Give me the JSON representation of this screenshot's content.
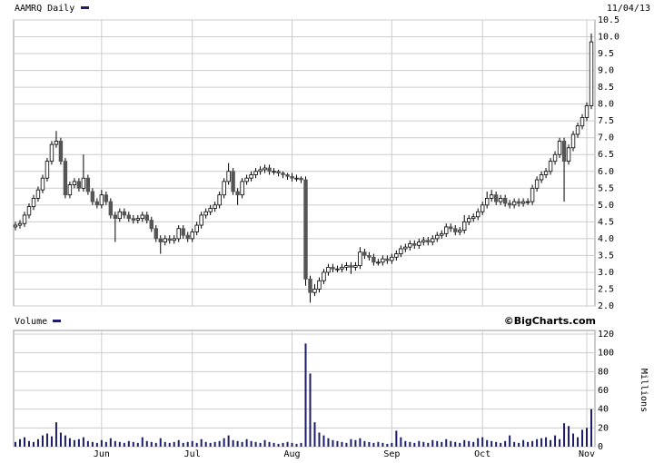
{
  "chart_data": [
    {
      "type": "candlestick",
      "title": "AAMRQ Daily",
      "date": "11/04/13",
      "open": [
        4.35,
        4.4,
        4.45,
        4.7,
        4.95,
        5.2,
        5.45,
        5.8,
        6.3,
        6.8,
        6.9,
        6.3,
        5.3,
        5.6,
        5.7,
        5.5,
        5.8,
        5.4,
        5.1,
        5.0,
        5.3,
        5.1,
        4.7,
        4.6,
        4.8,
        4.7,
        4.6,
        4.55,
        4.6,
        4.7,
        4.55,
        4.3,
        4.0,
        3.9,
        4.0,
        3.95,
        4.0,
        4.3,
        4.1,
        4.0,
        4.2,
        4.4,
        4.7,
        4.8,
        4.9,
        5.0,
        5.3,
        5.7,
        6.0,
        5.4,
        5.3,
        5.7,
        5.8,
        5.9,
        6.0,
        6.05,
        6.1,
        6.0,
        6.0,
        5.95,
        5.9,
        5.85,
        5.8,
        5.8,
        5.75,
        2.8,
        2.4,
        2.5,
        2.75,
        3.0,
        3.15,
        3.1,
        3.1,
        3.15,
        3.2,
        3.15,
        3.2,
        3.6,
        3.5,
        3.45,
        3.3,
        3.3,
        3.4,
        3.35,
        3.45,
        3.55,
        3.7,
        3.75,
        3.85,
        3.8,
        3.9,
        3.95,
        3.9,
        4.0,
        4.1,
        4.15,
        4.35,
        4.3,
        4.2,
        4.25,
        4.5,
        4.6,
        4.65,
        4.8,
        5.0,
        5.2,
        5.3,
        5.1,
        5.2,
        5.05,
        5.0,
        5.1,
        5.05,
        5.1,
        5.1,
        5.5,
        5.75,
        5.9,
        6.0,
        6.3,
        6.5,
        6.9,
        6.3,
        6.7,
        7.1,
        7.35,
        7.6,
        7.95
      ],
      "high": [
        4.5,
        4.55,
        4.8,
        5.05,
        5.3,
        5.55,
        5.9,
        6.4,
        6.9,
        7.2,
        7.0,
        6.4,
        5.7,
        5.8,
        5.8,
        6.5,
        5.9,
        5.5,
        5.2,
        5.45,
        5.4,
        5.2,
        4.8,
        4.9,
        4.9,
        4.8,
        4.7,
        4.7,
        4.8,
        4.8,
        4.65,
        4.4,
        4.1,
        4.1,
        4.1,
        4.1,
        4.4,
        4.4,
        4.2,
        4.3,
        4.5,
        4.8,
        4.9,
        5.0,
        5.1,
        5.4,
        5.8,
        6.25,
        6.1,
        5.5,
        5.8,
        5.9,
        6.0,
        6.1,
        6.15,
        6.2,
        6.2,
        6.1,
        6.05,
        6.0,
        5.95,
        5.95,
        5.9,
        5.85,
        5.85,
        2.9,
        2.65,
        2.85,
        3.1,
        3.25,
        3.25,
        3.2,
        3.25,
        3.3,
        3.3,
        3.3,
        3.75,
        3.7,
        3.6,
        3.55,
        3.4,
        3.5,
        3.5,
        3.55,
        3.65,
        3.8,
        3.85,
        3.95,
        3.95,
        4.0,
        4.05,
        4.05,
        4.1,
        4.2,
        4.25,
        4.45,
        4.45,
        4.4,
        4.35,
        4.7,
        4.7,
        4.75,
        4.9,
        5.1,
        5.4,
        5.45,
        5.4,
        5.3,
        5.3,
        5.15,
        5.2,
        5.2,
        5.2,
        5.2,
        5.6,
        5.85,
        6.0,
        6.1,
        6.4,
        6.6,
        7.0,
        7.0,
        6.8,
        7.2,
        7.45,
        7.7,
        8.05,
        10.1
      ],
      "low": [
        4.25,
        4.3,
        4.35,
        4.6,
        4.85,
        5.1,
        5.35,
        5.7,
        6.2,
        6.7,
        6.2,
        5.2,
        5.2,
        5.5,
        5.4,
        5.4,
        5.3,
        5.0,
        4.9,
        4.9,
        5.0,
        4.6,
        3.9,
        4.5,
        4.6,
        4.5,
        4.45,
        4.45,
        4.5,
        4.45,
        4.2,
        3.9,
        3.55,
        3.8,
        3.85,
        3.85,
        3.9,
        4.0,
        3.9,
        3.9,
        4.1,
        4.3,
        4.6,
        4.7,
        4.8,
        4.9,
        5.2,
        5.6,
        5.3,
        5.0,
        5.2,
        5.6,
        5.7,
        5.8,
        5.9,
        5.95,
        5.9,
        5.9,
        5.85,
        5.8,
        5.75,
        5.7,
        5.7,
        5.65,
        2.6,
        2.1,
        2.3,
        2.4,
        2.65,
        2.9,
        3.0,
        3.0,
        3.0,
        3.05,
        2.95,
        3.05,
        3.1,
        3.4,
        3.35,
        3.2,
        3.2,
        3.2,
        3.25,
        3.25,
        3.35,
        3.45,
        3.6,
        3.65,
        3.7,
        3.7,
        3.8,
        3.8,
        3.8,
        3.9,
        4.0,
        4.05,
        4.2,
        4.1,
        4.1,
        4.15,
        4.4,
        4.5,
        4.55,
        4.7,
        4.9,
        5.1,
        5.0,
        5.0,
        4.95,
        4.9,
        4.9,
        4.95,
        4.95,
        5.0,
        5.0,
        5.4,
        5.65,
        5.8,
        5.9,
        6.2,
        6.4,
        5.1,
        6.2,
        6.6,
        7.0,
        7.25,
        7.5,
        7.85
      ],
      "close": [
        4.4,
        4.45,
        4.7,
        4.95,
        5.2,
        5.45,
        5.8,
        6.3,
        6.8,
        6.9,
        6.3,
        5.3,
        5.6,
        5.7,
        5.5,
        5.8,
        5.4,
        5.1,
        5.0,
        5.3,
        5.1,
        4.7,
        4.6,
        4.8,
        4.7,
        4.6,
        4.55,
        4.6,
        4.7,
        4.55,
        4.3,
        4.0,
        3.9,
        4.0,
        3.95,
        4.0,
        4.3,
        4.1,
        4.0,
        4.2,
        4.4,
        4.7,
        4.8,
        4.9,
        5.0,
        5.3,
        5.7,
        6.0,
        5.4,
        5.3,
        5.7,
        5.8,
        5.9,
        6.0,
        6.05,
        6.1,
        6.0,
        6.0,
        5.95,
        5.9,
        5.85,
        5.8,
        5.8,
        5.75,
        2.8,
        2.4,
        2.5,
        2.75,
        3.0,
        3.15,
        3.1,
        3.1,
        3.15,
        3.2,
        3.15,
        3.2,
        3.6,
        3.5,
        3.45,
        3.3,
        3.3,
        3.4,
        3.35,
        3.45,
        3.55,
        3.7,
        3.75,
        3.85,
        3.8,
        3.9,
        3.95,
        3.9,
        4.0,
        4.1,
        4.15,
        4.35,
        4.3,
        4.2,
        4.25,
        4.5,
        4.6,
        4.65,
        4.8,
        5.0,
        5.2,
        5.3,
        5.1,
        5.2,
        5.05,
        5.0,
        5.1,
        5.05,
        5.1,
        5.1,
        5.5,
        5.75,
        5.9,
        6.0,
        6.3,
        6.5,
        6.9,
        6.3,
        6.7,
        7.1,
        7.35,
        7.6,
        7.95,
        9.85
      ],
      "up_color": "#ffffff",
      "down_color": "#555555",
      "ylim": [
        2,
        10.5
      ],
      "yticks": [
        {
          "value": 2,
          "label": "2.0"
        },
        2.5,
        {
          "value": 3,
          "label": "3.0"
        },
        3.5,
        {
          "value": 4,
          "label": "4.0"
        },
        4.5,
        {
          "value": 5,
          "label": "5.0"
        },
        5.5,
        {
          "value": 6,
          "label": "6.0"
        },
        6.5,
        {
          "value": 7,
          "label": "7.0"
        },
        7.5,
        {
          "value": 8,
          "label": "8.0"
        },
        8.5,
        {
          "value": 9,
          "label": "9.0"
        },
        9.5,
        {
          "value": 10,
          "label": "10.0"
        },
        10.5
      ],
      "grid": true
    },
    {
      "type": "bar",
      "title": "Volume",
      "source": "©BigCharts.com",
      "y_label": "Millions",
      "categories": [
        null,
        null,
        null,
        null,
        null,
        null,
        null,
        null,
        null,
        null,
        null,
        null,
        null,
        null,
        null,
        null,
        null,
        null,
        null,
        "Jun",
        null,
        null,
        null,
        null,
        null,
        null,
        null,
        null,
        null,
        null,
        null,
        null,
        null,
        null,
        null,
        null,
        null,
        null,
        null,
        "Jul",
        null,
        null,
        null,
        null,
        null,
        null,
        null,
        null,
        null,
        null,
        null,
        null,
        null,
        null,
        null,
        null,
        null,
        null,
        null,
        null,
        null,
        "Aug",
        null,
        null,
        null,
        null,
        null,
        null,
        null,
        null,
        null,
        null,
        null,
        null,
        null,
        null,
        null,
        null,
        null,
        null,
        null,
        null,
        null,
        "Sep",
        null,
        null,
        null,
        null,
        null,
        null,
        null,
        null,
        null,
        null,
        null,
        null,
        null,
        null,
        null,
        null,
        null,
        null,
        null,
        "Oct",
        null,
        null,
        null,
        null,
        null,
        null,
        null,
        null,
        null,
        null,
        null,
        null,
        null,
        null,
        null,
        null,
        null,
        null,
        null,
        null,
        null,
        null,
        "Nov",
        null
      ],
      "values": [
        5,
        8,
        10,
        6,
        5,
        8,
        12,
        14,
        11,
        26,
        15,
        12,
        9,
        7,
        8,
        10,
        6,
        5,
        4,
        7,
        5,
        9,
        6,
        5,
        4,
        6,
        5,
        4,
        10,
        6,
        5,
        4,
        9,
        5,
        4,
        5,
        7,
        4,
        5,
        6,
        4,
        8,
        5,
        4,
        5,
        6,
        9,
        12,
        7,
        6,
        5,
        8,
        6,
        5,
        4,
        7,
        5,
        4,
        3,
        4,
        5,
        4,
        3,
        4,
        110,
        78,
        26,
        15,
        12,
        9,
        7,
        6,
        5,
        4,
        8,
        7,
        9,
        6,
        5,
        4,
        5,
        4,
        3,
        4,
        17,
        10,
        6,
        5,
        4,
        6,
        5,
        4,
        7,
        6,
        5,
        8,
        6,
        5,
        4,
        7,
        6,
        5,
        9,
        10,
        7,
        6,
        5,
        4,
        6,
        12,
        5,
        4,
        7,
        5,
        6,
        8,
        9,
        10,
        7,
        12,
        8,
        25,
        22,
        14,
        10,
        18,
        20,
        40
      ],
      "color": "#1c1c6b",
      "ylim": [
        0,
        120
      ],
      "yticks": [
        0,
        20,
        40,
        60,
        80,
        100,
        120
      ],
      "grid": true
    }
  ]
}
